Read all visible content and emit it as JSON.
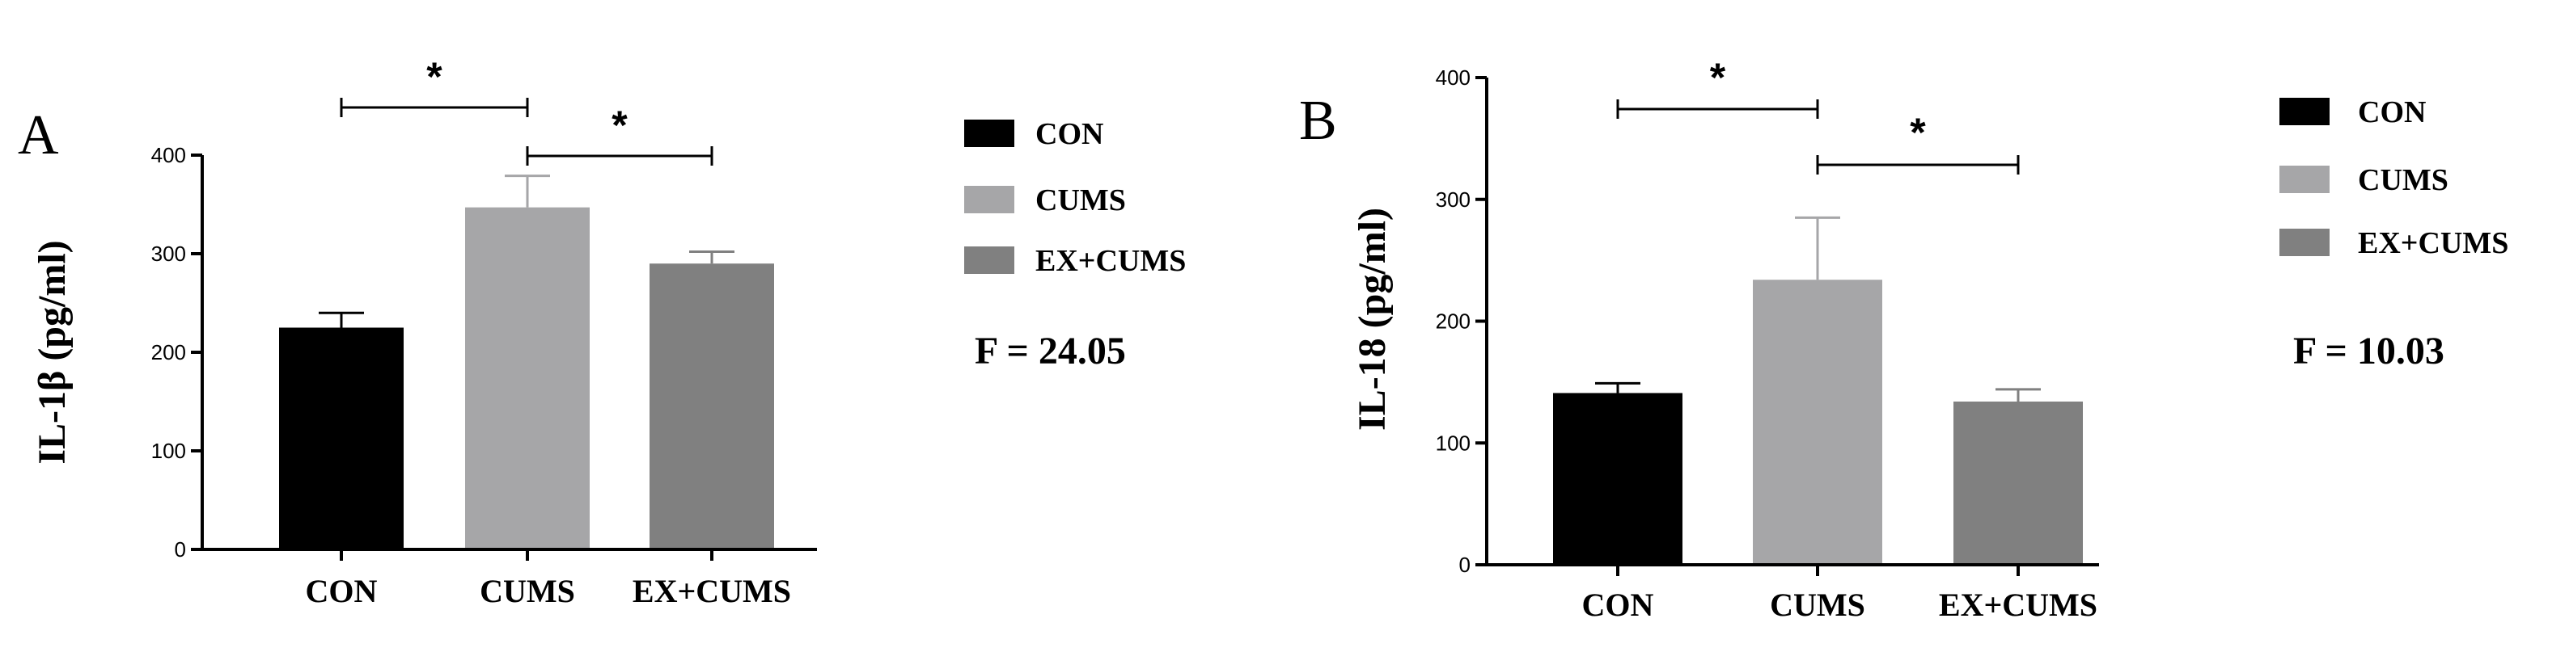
{
  "colors": {
    "CON": "#000000",
    "CUMS": "#a6a6a8",
    "EX+CUMS": "#808080"
  },
  "chart_data": [
    {
      "panel": "A",
      "type": "bar",
      "categories": [
        "CON",
        "CUMS",
        "EX+CUMS"
      ],
      "values": [
        225,
        347,
        290
      ],
      "errors": [
        15,
        32,
        12
      ],
      "ylabel": "IL-1β (pg/ml)",
      "ylim": [
        0,
        400
      ],
      "yticks": [
        "0",
        "100",
        "200",
        "300",
        "400"
      ],
      "legend": [
        "CON",
        "CUMS",
        "EX+CUMS"
      ],
      "stat": "F = 24.05",
      "significance": [
        {
          "pair": [
            "CON",
            "CUMS"
          ],
          "label": "*"
        },
        {
          "pair": [
            "CUMS",
            "EX+CUMS"
          ],
          "label": "*"
        }
      ]
    },
    {
      "panel": "B",
      "type": "bar",
      "categories": [
        "CON",
        "CUMS",
        "EX+CUMS"
      ],
      "values": [
        141,
        234,
        134
      ],
      "errors": [
        8,
        51,
        10
      ],
      "ylabel": "IL-18 (pg/ml)",
      "ylim": [
        0,
        400
      ],
      "yticks": [
        "0",
        "100",
        "200",
        "300",
        "400"
      ],
      "legend": [
        "CON",
        "CUMS",
        "EX+CUMS"
      ],
      "stat": "F = 10.03",
      "significance": [
        {
          "pair": [
            "CON",
            "CUMS"
          ],
          "label": "*"
        },
        {
          "pair": [
            "CUMS",
            "EX+CUMS"
          ],
          "label": "*"
        }
      ]
    }
  ]
}
